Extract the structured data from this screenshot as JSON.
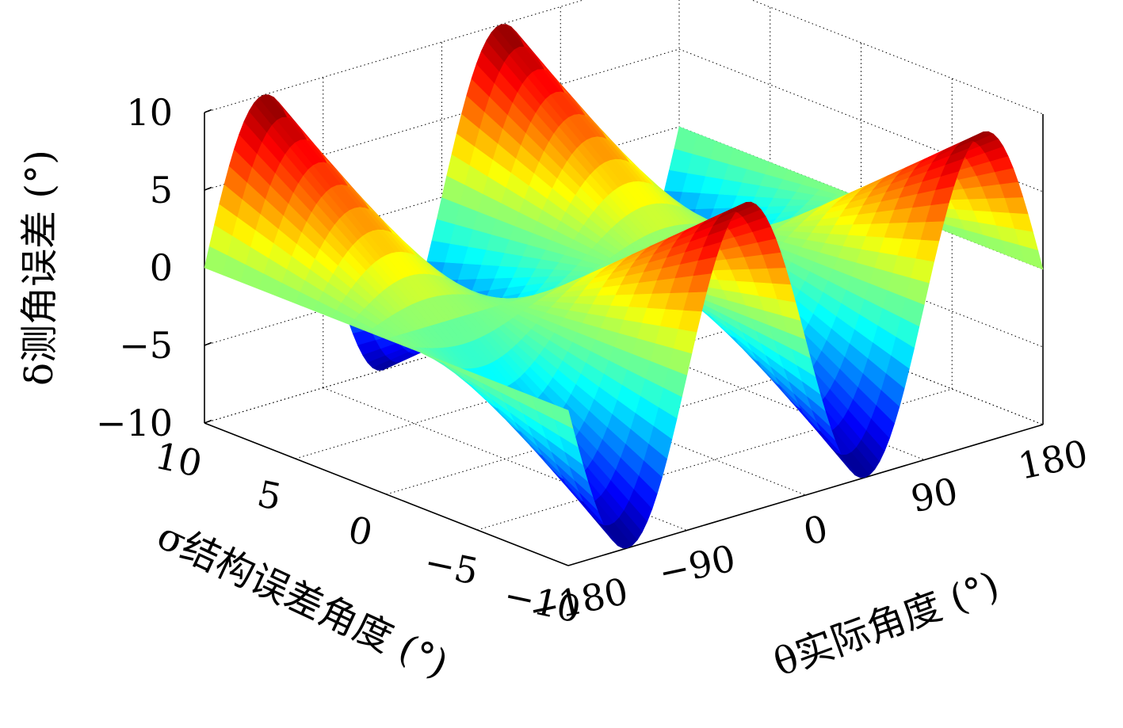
{
  "chart_data": {
    "type": "surface3d",
    "colormap": "jet",
    "zlabel": "δ测角误差 (°)",
    "xlabel": "θ实际角度 (°)",
    "ylabel": "σ结构误差角度 (°)",
    "x_ticks": [
      "−180",
      "−90",
      "0",
      "90",
      "180"
    ],
    "y_ticks": [
      "10",
      "5",
      "0",
      "−5",
      "−10"
    ],
    "z_ticks": [
      "10",
      "5",
      "0",
      "−5",
      "−10"
    ],
    "xlim": [
      -180,
      180
    ],
    "ylim": [
      -10,
      10
    ],
    "zlim": [
      -10,
      10
    ],
    "grid": true,
    "function": "z = y * sin(2x)",
    "x_tick_values": [
      -180,
      -90,
      0,
      90,
      180
    ],
    "y_tick_values": [
      10,
      5,
      0,
      -5,
      -10
    ],
    "z_tick_values": [
      10,
      5,
      0,
      -5,
      -10
    ],
    "sample_points": [
      {
        "x": -135,
        "y": 10,
        "z": 10
      },
      {
        "x": -45,
        "y": 10,
        "z": -10
      },
      {
        "x": 45,
        "y": 10,
        "z": 10
      },
      {
        "x": 135,
        "y": 10,
        "z": -10
      },
      {
        "x": -135,
        "y": -10,
        "z": -10
      },
      {
        "x": -45,
        "y": -10,
        "z": 10
      },
      {
        "x": 45,
        "y": -10,
        "z": -10
      },
      {
        "x": 135,
        "y": -10,
        "z": 10
      }
    ]
  }
}
